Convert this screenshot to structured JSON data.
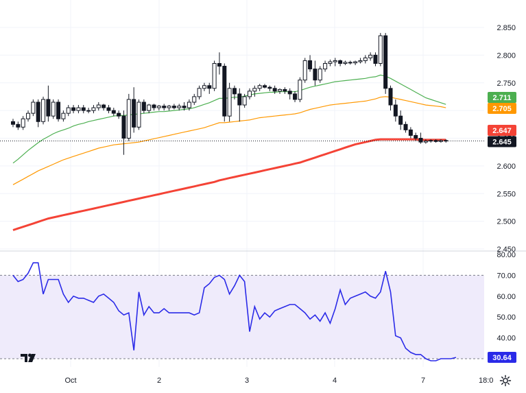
{
  "chart_data": [
    {
      "type": "candlestick",
      "title": "",
      "xlabel": "",
      "ylabel": "",
      "x_tick_labels": [
        "Oct",
        "2",
        "3",
        "4",
        "7"
      ],
      "y_ticks": [
        2.45,
        2.5,
        2.55,
        2.6,
        2.65,
        2.7,
        2.75,
        2.8,
        2.85
      ],
      "y_tick_labels": [
        "2.450",
        "2.500",
        "2.550",
        "2.600",
        "2.650",
        "2.700",
        "2.750",
        "2.800",
        "2.850"
      ],
      "ylim": [
        2.45,
        2.865
      ],
      "last_price": 2.645,
      "last_price_label": "2.645",
      "candles": [
        [
          2.68,
          2.685,
          2.67,
          2.675
        ],
        [
          2.675,
          2.68,
          2.665,
          2.67
        ],
        [
          2.67,
          2.69,
          2.665,
          2.685
        ],
        [
          2.685,
          2.7,
          2.68,
          2.695
        ],
        [
          2.695,
          2.72,
          2.69,
          2.715
        ],
        [
          2.715,
          2.72,
          2.67,
          2.68
        ],
        [
          2.68,
          2.725,
          2.675,
          2.72
        ],
        [
          2.72,
          2.745,
          2.68,
          2.69
        ],
        [
          2.69,
          2.72,
          2.685,
          2.715
        ],
        [
          2.715,
          2.72,
          2.68,
          2.685
        ],
        [
          2.685,
          2.7,
          2.68,
          2.695
        ],
        [
          2.695,
          2.71,
          2.69,
          2.705
        ],
        [
          2.705,
          2.71,
          2.695,
          2.7
        ],
        [
          2.7,
          2.71,
          2.695,
          2.705
        ],
        [
          2.705,
          2.71,
          2.695,
          2.7
        ],
        [
          2.7,
          2.705,
          2.695,
          2.7
        ],
        [
          2.7,
          2.71,
          2.695,
          2.705
        ],
        [
          2.705,
          2.715,
          2.7,
          2.71
        ],
        [
          2.71,
          2.712,
          2.7,
          2.705
        ],
        [
          2.705,
          2.71,
          2.695,
          2.7
        ],
        [
          2.7,
          2.705,
          2.69,
          2.695
        ],
        [
          2.695,
          2.7,
          2.685,
          2.69
        ],
        [
          2.69,
          2.7,
          2.62,
          2.65
        ],
        [
          2.65,
          2.73,
          2.645,
          2.72
        ],
        [
          2.72,
          2.742,
          2.66,
          2.67
        ],
        [
          2.67,
          2.72,
          2.665,
          2.715
        ],
        [
          2.715,
          2.72,
          2.695,
          2.7
        ],
        [
          2.7,
          2.712,
          2.695,
          2.71
        ],
        [
          2.71,
          2.712,
          2.7,
          2.705
        ],
        [
          2.705,
          2.71,
          2.7,
          2.708
        ],
        [
          2.708,
          2.712,
          2.7,
          2.705
        ],
        [
          2.705,
          2.71,
          2.7,
          2.708
        ],
        [
          2.708,
          2.712,
          2.702,
          2.705
        ],
        [
          2.705,
          2.712,
          2.7,
          2.708
        ],
        [
          2.708,
          2.715,
          2.7,
          2.705
        ],
        [
          2.705,
          2.72,
          2.7,
          2.715
        ],
        [
          2.715,
          2.73,
          2.71,
          2.725
        ],
        [
          2.725,
          2.745,
          2.72,
          2.74
        ],
        [
          2.74,
          2.75,
          2.735,
          2.745
        ],
        [
          2.745,
          2.75,
          2.73,
          2.74
        ],
        [
          2.74,
          2.79,
          2.735,
          2.785
        ],
        [
          2.785,
          2.805,
          2.765,
          2.78
        ],
        [
          2.78,
          2.785,
          2.68,
          2.69
        ],
        [
          2.69,
          2.75,
          2.68,
          2.74
        ],
        [
          2.74,
          2.745,
          2.72,
          2.73
        ],
        [
          2.73,
          2.74,
          2.68,
          2.71
        ],
        [
          2.71,
          2.73,
          2.705,
          2.725
        ],
        [
          2.725,
          2.74,
          2.72,
          2.735
        ],
        [
          2.735,
          2.745,
          2.725,
          2.74
        ],
        [
          2.74,
          2.748,
          2.735,
          2.745
        ],
        [
          2.745,
          2.748,
          2.74,
          2.742
        ],
        [
          2.742,
          2.745,
          2.735,
          2.74
        ],
        [
          2.74,
          2.745,
          2.73,
          2.735
        ],
        [
          2.735,
          2.74,
          2.73,
          2.738
        ],
        [
          2.738,
          2.742,
          2.73,
          2.735
        ],
        [
          2.735,
          2.74,
          2.72,
          2.73
        ],
        [
          2.73,
          2.735,
          2.715,
          2.72
        ],
        [
          2.72,
          2.76,
          2.715,
          2.755
        ],
        [
          2.755,
          2.795,
          2.75,
          2.79
        ],
        [
          2.79,
          2.8,
          2.77,
          2.775
        ],
        [
          2.775,
          2.79,
          2.745,
          2.755
        ],
        [
          2.755,
          2.78,
          2.75,
          2.775
        ],
        [
          2.775,
          2.79,
          2.77,
          2.785
        ],
        [
          2.785,
          2.792,
          2.78,
          2.788
        ],
        [
          2.788,
          2.795,
          2.78,
          2.79
        ],
        [
          2.79,
          2.792,
          2.78,
          2.785
        ],
        [
          2.785,
          2.79,
          2.782,
          2.787
        ],
        [
          2.787,
          2.79,
          2.783,
          2.786
        ],
        [
          2.786,
          2.79,
          2.782,
          2.788
        ],
        [
          2.788,
          2.795,
          2.785,
          2.79
        ],
        [
          2.79,
          2.8,
          2.785,
          2.795
        ],
        [
          2.795,
          2.805,
          2.79,
          2.8
        ],
        [
          2.8,
          2.805,
          2.78,
          2.785
        ],
        [
          2.785,
          2.84,
          2.78,
          2.835
        ],
        [
          2.835,
          2.84,
          2.73,
          2.74
        ],
        [
          2.74,
          2.745,
          2.7,
          2.71
        ],
        [
          2.71,
          2.72,
          2.68,
          2.69
        ],
        [
          2.69,
          2.7,
          2.665,
          2.675
        ],
        [
          2.675,
          2.68,
          2.66,
          2.665
        ],
        [
          2.665,
          2.67,
          2.65,
          2.655
        ],
        [
          2.655,
          2.66,
          2.645,
          2.65
        ],
        [
          2.65,
          2.66,
          2.64,
          2.643
        ],
        [
          2.643,
          2.648,
          2.64,
          2.645
        ],
        [
          2.645,
          2.648,
          2.642,
          2.646
        ],
        [
          2.646,
          2.648,
          2.642,
          2.644
        ],
        [
          2.644,
          2.648,
          2.642,
          2.646
        ],
        [
          2.646,
          2.648,
          2.642,
          2.645
        ]
      ],
      "series": [
        {
          "color": "#4caf50",
          "last_value_label": "2.711",
          "values": [
            2.605,
            2.612,
            2.62,
            2.628,
            2.635,
            2.642,
            2.648,
            2.653,
            2.658,
            2.662,
            2.665,
            2.668,
            2.672,
            2.675,
            2.677,
            2.68,
            2.682,
            2.684,
            2.686,
            2.688,
            2.69,
            2.691,
            2.691,
            2.692,
            2.693,
            2.694,
            2.695,
            2.696,
            2.697,
            2.698,
            2.698,
            2.699,
            2.7,
            2.701,
            2.702,
            2.703,
            2.705,
            2.708,
            2.711,
            2.714,
            2.718,
            2.722,
            2.722,
            2.723,
            2.724,
            2.724,
            2.726,
            2.728,
            2.73,
            2.731,
            2.732,
            2.733,
            2.733,
            2.734,
            2.734,
            2.734,
            2.734,
            2.736,
            2.739,
            2.742,
            2.744,
            2.746,
            2.748,
            2.75,
            2.752,
            2.753,
            2.754,
            2.755,
            2.756,
            2.757,
            2.758,
            2.76,
            2.761,
            2.764,
            2.762,
            2.758,
            2.753,
            2.748,
            2.743,
            2.738,
            2.733,
            2.728,
            2.723,
            2.72,
            2.717,
            2.714,
            2.711
          ]
        },
        {
          "color": "#ff9800",
          "last_value_label": "2.705",
          "values": [
            2.566,
            2.571,
            2.576,
            2.581,
            2.586,
            2.591,
            2.595,
            2.599,
            2.603,
            2.607,
            2.611,
            2.614,
            2.617,
            2.62,
            2.623,
            2.626,
            2.629,
            2.632,
            2.634,
            2.636,
            2.638,
            2.639,
            2.64,
            2.641,
            2.642,
            2.643,
            2.645,
            2.647,
            2.649,
            2.651,
            2.653,
            2.655,
            2.657,
            2.659,
            2.661,
            2.663,
            2.665,
            2.667,
            2.669,
            2.672,
            2.675,
            2.678,
            2.678,
            2.679,
            2.68,
            2.681,
            2.682,
            2.683,
            2.685,
            2.687,
            2.688,
            2.689,
            2.69,
            2.691,
            2.692,
            2.693,
            2.694,
            2.696,
            2.699,
            2.702,
            2.704,
            2.706,
            2.708,
            2.71,
            2.711,
            2.712,
            2.713,
            2.714,
            2.715,
            2.716,
            2.717,
            2.719,
            2.721,
            2.724,
            2.725,
            2.724,
            2.722,
            2.72,
            2.718,
            2.716,
            2.714,
            2.712,
            2.71,
            2.709,
            2.708,
            2.707,
            2.705
          ]
        },
        {
          "color": "#f44336",
          "last_value_label": "2.647",
          "values": [
            2.484,
            2.487,
            2.49,
            2.493,
            2.496,
            2.499,
            2.502,
            2.505,
            2.507,
            2.509,
            2.511,
            2.513,
            2.515,
            2.517,
            2.519,
            2.521,
            2.523,
            2.525,
            2.527,
            2.529,
            2.531,
            2.533,
            2.535,
            2.537,
            2.539,
            2.541,
            2.543,
            2.545,
            2.547,
            2.549,
            2.551,
            2.553,
            2.555,
            2.557,
            2.559,
            2.561,
            2.563,
            2.565,
            2.567,
            2.569,
            2.571,
            2.574,
            2.576,
            2.578,
            2.58,
            2.582,
            2.584,
            2.586,
            2.588,
            2.59,
            2.592,
            2.594,
            2.596,
            2.598,
            2.6,
            2.602,
            2.604,
            2.606,
            2.609,
            2.612,
            2.615,
            2.618,
            2.621,
            2.624,
            2.627,
            2.63,
            2.633,
            2.636,
            2.639,
            2.641,
            2.643,
            2.645,
            2.647,
            2.648,
            2.648,
            2.648,
            2.648,
            2.648,
            2.648,
            2.648,
            2.648,
            2.647,
            2.647,
            2.647,
            2.647,
            2.647,
            2.647
          ]
        }
      ]
    },
    {
      "type": "line",
      "title": "",
      "ylim": [
        28,
        80
      ],
      "y_ticks": [
        40,
        50,
        60,
        70,
        80
      ],
      "y_tick_labels": [
        "40.00",
        "50.00",
        "60.00",
        "70.00",
        "80.00"
      ],
      "band": [
        30,
        70
      ],
      "band_color": "#efebfb",
      "color": "#2a2ae8",
      "last_value_label": "30.64",
      "series": [
        {
          "values": [
            70,
            67,
            68,
            71,
            76,
            76,
            61,
            68,
            68,
            68,
            61,
            57,
            60,
            59,
            59,
            58,
            57,
            60,
            61,
            59,
            57,
            53,
            51,
            52,
            34,
            62,
            51,
            55,
            52,
            52,
            54,
            52,
            52,
            52,
            52,
            52,
            51,
            52,
            64,
            66,
            69,
            70,
            68,
            61,
            65,
            70,
            67,
            43,
            55,
            49,
            52,
            50,
            53,
            54,
            55,
            56,
            56,
            54,
            52,
            49,
            51,
            48,
            52,
            47,
            54,
            63,
            56,
            59,
            60,
            61,
            62,
            60,
            59,
            62,
            72,
            62,
            41,
            40,
            35,
            33,
            32,
            32,
            30,
            29,
            29,
            30,
            30,
            30,
            30.64
          ]
        }
      ]
    }
  ],
  "x_axis": {
    "time_label": "18:0"
  },
  "icons": {
    "logo": "tradingview-logo-icon",
    "settings": "gear-icon"
  }
}
